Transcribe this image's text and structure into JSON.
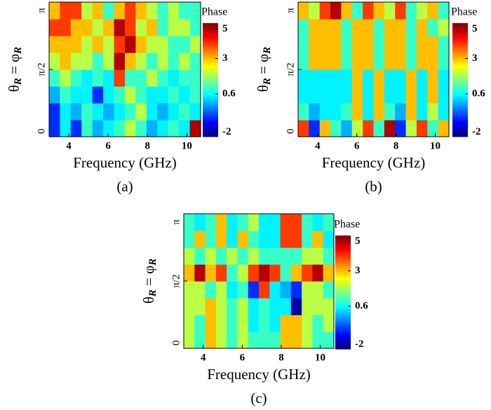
{
  "chart_data": [
    {
      "type": "heatmap",
      "caption": "(a)",
      "xlabel": "Frequency (GHz)",
      "ylabel": [
        "θ",
        "R",
        " = φ",
        "R"
      ],
      "colorbar_label": "Phase",
      "colormap": "jet",
      "xlim": [
        3,
        10.7
      ],
      "xticks": [
        4,
        6,
        8,
        10
      ],
      "ylim": [
        0,
        3.1416
      ],
      "yticks": [
        0,
        {
          "value": 1.5708,
          "label": "π/2"
        },
        {
          "value": 3.1416,
          "label": "π"
        }
      ],
      "clim": [
        -2.3,
        5.4
      ],
      "cticks": [
        5,
        3,
        0.6,
        -2
      ],
      "z": [
        [
          -1,
          0.5,
          -1,
          1,
          0,
          0.5,
          1,
          2,
          1,
          0,
          0.5,
          1,
          0.5,
          5
        ],
        [
          -1,
          0.5,
          0,
          1,
          0.5,
          0,
          0.5,
          1,
          2,
          0.5,
          0,
          0.5,
          1,
          0.5
        ],
        [
          0,
          1,
          0.5,
          0.5,
          -1,
          0.5,
          1,
          2,
          1,
          0.5,
          0.5,
          1,
          0.5,
          1
        ],
        [
          1,
          2,
          1,
          0.5,
          1,
          0.5,
          4,
          1,
          1,
          2,
          1,
          0.5,
          1,
          1
        ],
        [
          2,
          3,
          2,
          2,
          1,
          2,
          5,
          3,
          2,
          1,
          2,
          1,
          2,
          1
        ],
        [
          3,
          3,
          3,
          2,
          3,
          2,
          4,
          5,
          3,
          2,
          2,
          1,
          1,
          2
        ],
        [
          4,
          4,
          3,
          3,
          2,
          3,
          5,
          4,
          2,
          3,
          1,
          2,
          2,
          1
        ],
        [
          3,
          4,
          4,
          2,
          3,
          1,
          3,
          4,
          3,
          2,
          1,
          2,
          1,
          1
        ]
      ]
    },
    {
      "type": "heatmap",
      "caption": "(b)",
      "xlabel": "Frequency (GHz)",
      "ylabel": [
        "θ",
        "R",
        " = φ",
        "R"
      ],
      "colorbar_label": "Phase",
      "colormap": "jet",
      "xlim": [
        3,
        10.7
      ],
      "xticks": [
        4,
        6,
        8,
        10
      ],
      "ylim": [
        0,
        3.1416
      ],
      "yticks": [
        0,
        {
          "value": 1.5708,
          "label": "π/2"
        },
        {
          "value": 3.1416,
          "label": "π"
        }
      ],
      "clim": [
        -2.3,
        5.4
      ],
      "cticks": [
        5,
        3,
        0.6,
        -2
      ],
      "z": [
        [
          4,
          -1,
          3,
          1,
          0,
          2,
          4,
          1,
          5,
          -1,
          2,
          4,
          1,
          3
        ],
        [
          1,
          0,
          0.5,
          0.5,
          1,
          3,
          0.5,
          3,
          1,
          0,
          3,
          0.5,
          2,
          0.5
        ],
        [
          0.5,
          0.5,
          0.5,
          0.5,
          0.5,
          3,
          0.5,
          3,
          0.5,
          0.5,
          3,
          0.5,
          3,
          0.5
        ],
        [
          0.5,
          0.5,
          0.5,
          0.5,
          0.5,
          3,
          0.5,
          3,
          0.5,
          0.5,
          3,
          0.5,
          3,
          0.5
        ],
        [
          1,
          3,
          3,
          3,
          1,
          3,
          3,
          1,
          3,
          3,
          1,
          3,
          3,
          1
        ],
        [
          1,
          3,
          3,
          3,
          1,
          3,
          3,
          1,
          3,
          3,
          1,
          3,
          3,
          1
        ],
        [
          1,
          3,
          3,
          3,
          1,
          3,
          3,
          1,
          3,
          3,
          1,
          3,
          1,
          2
        ],
        [
          3,
          2,
          4,
          5,
          3,
          1,
          4,
          3,
          2,
          4,
          1,
          2,
          3,
          1
        ]
      ]
    },
    {
      "type": "heatmap",
      "caption": "(c)",
      "xlabel": "Frequency (GHz)",
      "ylabel": [
        "θ",
        "R",
        " = φ",
        "R"
      ],
      "colorbar_label": "Phase",
      "colormap": "jet",
      "xlim": [
        3,
        10.7
      ],
      "xticks": [
        4,
        6,
        8,
        10
      ],
      "ylim": [
        0,
        3.1416
      ],
      "yticks": [
        0,
        {
          "value": 1.5708,
          "label": "π/2"
        },
        {
          "value": 3.1416,
          "label": "π"
        }
      ],
      "clim": [
        -2.3,
        5.4
      ],
      "cticks": [
        5,
        3,
        0.6,
        -2
      ],
      "z": [
        [
          2,
          1,
          3,
          2,
          1,
          2,
          1,
          1,
          1,
          3,
          3,
          2,
          1,
          1
        ],
        [
          2,
          1,
          3,
          2,
          1,
          2,
          0.5,
          1,
          0.5,
          3,
          3,
          2,
          1,
          2
        ],
        [
          2,
          2,
          3,
          2,
          1,
          2,
          0.5,
          1,
          0.5,
          0.5,
          -2,
          2,
          2,
          2
        ],
        [
          2,
          2,
          1,
          2,
          0.5,
          1,
          -1,
          4,
          0.5,
          0,
          -1,
          2,
          2,
          1
        ],
        [
          3,
          5,
          3,
          4,
          1,
          2,
          4,
          5,
          4,
          1,
          3,
          4,
          5,
          3
        ],
        [
          2,
          1,
          2,
          1,
          2,
          1,
          2,
          1,
          1,
          1,
          1,
          2,
          2,
          1
        ],
        [
          1,
          3,
          1,
          3,
          0.5,
          3,
          1,
          0.5,
          0.5,
          4,
          4,
          1,
          3,
          0.5
        ],
        [
          1,
          0.5,
          1,
          3,
          0.5,
          1,
          2,
          0.5,
          0.5,
          4,
          4,
          1,
          0.5,
          1
        ]
      ]
    }
  ]
}
